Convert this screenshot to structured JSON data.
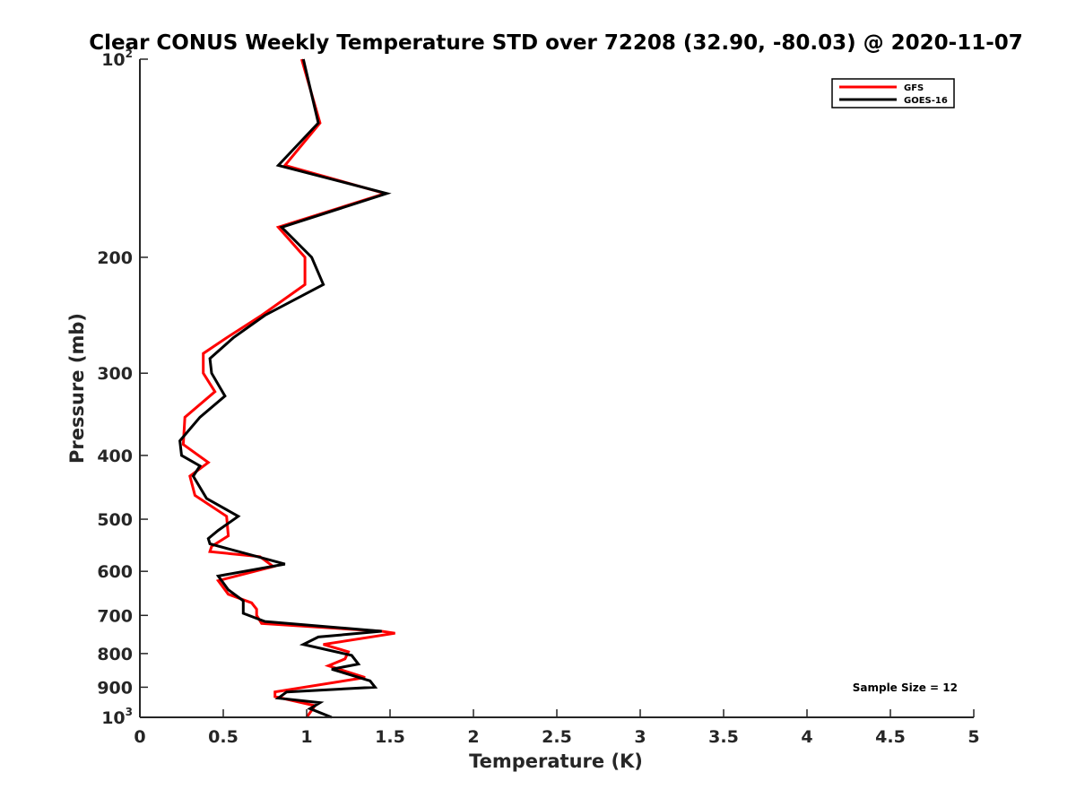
{
  "chart_data": {
    "type": "line",
    "title": "Clear CONUS Weekly Temperature STD over 72208 (32.90, -80.03) @ 2020-11-07",
    "xlabel": "Temperature (K)",
    "ylabel": "Pressure (mb)",
    "xlim": [
      0,
      5
    ],
    "ylim": [
      100,
      1000
    ],
    "y_scale": "log",
    "y_reversed": true,
    "grid": false,
    "legend_position": "top-right",
    "x_ticks": [
      "0",
      "0.5",
      "1",
      "1.5",
      "2",
      "2.5",
      "3",
      "3.5",
      "4",
      "4.5",
      "5"
    ],
    "y_ticks": [
      {
        "value": 100,
        "base": "10",
        "exp": "2"
      },
      {
        "value": 200,
        "label": "200"
      },
      {
        "value": 300,
        "label": "300"
      },
      {
        "value": 400,
        "label": "400"
      },
      {
        "value": 500,
        "label": "500"
      },
      {
        "value": 600,
        "label": "600"
      },
      {
        "value": 700,
        "label": "700"
      },
      {
        "value": 800,
        "label": "800"
      },
      {
        "value": 900,
        "label": "900"
      },
      {
        "value": 1000,
        "base": "10",
        "exp": "3"
      }
    ],
    "annotation": "Sample Size = 12",
    "series": [
      {
        "name": "GFS",
        "color": "#ff0000",
        "x": [
          0.97,
          1.08,
          0.87,
          1.47,
          0.83,
          0.99,
          0.99,
          0.73,
          0.52,
          0.38,
          0.38,
          0.45,
          0.27,
          0.26,
          0.41,
          0.3,
          0.33,
          0.52,
          0.53,
          0.43,
          0.42,
          0.72,
          0.8,
          0.47,
          0.53,
          0.67,
          0.7,
          0.7,
          0.73,
          1.45,
          1.53,
          1.1,
          1.25,
          1.23,
          1.13,
          1.35,
          0.81,
          0.81,
          1.05,
          1.0
        ],
        "y": [
          100,
          125,
          145,
          160,
          180,
          200,
          220,
          245,
          265,
          280,
          300,
          320,
          350,
          385,
          410,
          430,
          460,
          495,
          530,
          550,
          560,
          570,
          590,
          620,
          650,
          670,
          685,
          700,
          720,
          740,
          745,
          775,
          795,
          815,
          835,
          870,
          915,
          930,
          960,
          1000
        ],
        "width": 3
      },
      {
        "name": "GOES-16",
        "color": "#000000",
        "x": [
          0.98,
          1.07,
          0.83,
          1.48,
          0.85,
          1.03,
          1.1,
          0.75,
          0.56,
          0.42,
          0.43,
          0.51,
          0.36,
          0.24,
          0.25,
          0.36,
          0.32,
          0.4,
          0.59,
          0.47,
          0.41,
          0.42,
          0.87,
          0.47,
          0.53,
          0.62,
          0.62,
          0.75,
          1.45,
          1.07,
          0.98,
          1.27,
          1.31,
          1.15,
          1.38,
          1.41,
          0.88,
          0.83,
          1.08,
          1.02,
          1.15
        ],
        "y": [
          100,
          125,
          145,
          160,
          180,
          200,
          220,
          245,
          265,
          285,
          300,
          325,
          350,
          380,
          400,
          415,
          430,
          465,
          495,
          520,
          535,
          545,
          585,
          610,
          640,
          665,
          695,
          715,
          740,
          755,
          775,
          805,
          830,
          845,
          880,
          900,
          915,
          935,
          950,
          970,
          1000
        ],
        "width": 3
      }
    ]
  }
}
